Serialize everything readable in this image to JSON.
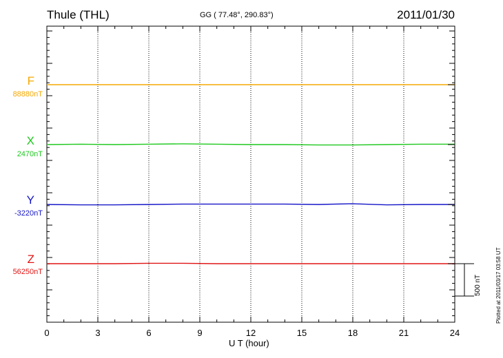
{
  "header": {
    "station": "Thule (THL)",
    "coords": "GG ( 77.48°, 290.83°)",
    "date": "2011/01/30"
  },
  "footer": {
    "plotted": "Plotted at 2011/03/17 03:58 UT"
  },
  "chart_data": {
    "type": "line",
    "xlabel": "U T (hour)",
    "xlim": [
      0,
      24
    ],
    "xticks": [
      0,
      3,
      6,
      9,
      12,
      15,
      18,
      21,
      24
    ],
    "grid": "vertical dotted lines at every 3 hours",
    "scale_bar": {
      "value": 500,
      "label": "500 nT"
    },
    "series": [
      {
        "name": "F",
        "baseline": "88880nT",
        "color": "#f5a800",
        "values_offset_nT": [
          0,
          0,
          0,
          0,
          0,
          0,
          0,
          0,
          0,
          0,
          0,
          0,
          0
        ]
      },
      {
        "name": "X",
        "baseline": "2470nT",
        "color": "#1ec81e",
        "values_offset_nT": [
          0,
          2,
          0,
          2,
          4,
          2,
          0,
          0,
          -2,
          -2,
          0,
          2,
          2
        ]
      },
      {
        "name": "Y",
        "baseline": "-3220nT",
        "color": "#1414c8",
        "values_offset_nT": [
          0,
          -2,
          -2,
          0,
          2,
          2,
          2,
          2,
          0,
          4,
          -2,
          0,
          0
        ]
      },
      {
        "name": "Z",
        "baseline": "56250nT",
        "color": "#e01414",
        "values_offset_nT": [
          0,
          0,
          0,
          2,
          2,
          0,
          0,
          0,
          0,
          0,
          0,
          0,
          0
        ]
      }
    ],
    "x_hours": [
      0,
      2,
      4,
      6,
      8,
      10,
      12,
      14,
      16,
      18,
      20,
      22,
      24
    ]
  }
}
